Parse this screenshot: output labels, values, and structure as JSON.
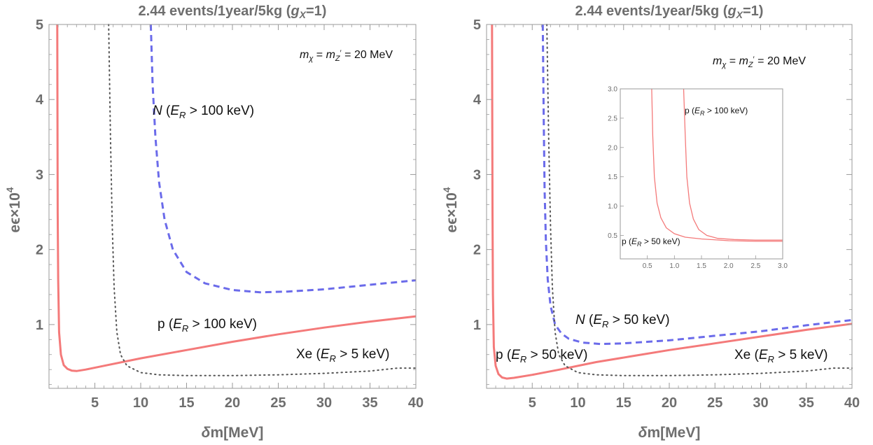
{
  "chart_data": [
    {
      "type": "line",
      "title_main": "2.44 events/1year/5kg (",
      "title_var": "g",
      "title_sub": "X",
      "title_end": "=1)",
      "xlabel_delta": "δ",
      "xlabel_rest": "m[MeV]",
      "ylabel_main": "eϵ×10",
      "ylabel_exp": "4",
      "xlim": [
        0,
        40
      ],
      "ylim": [
        0.15,
        5
      ],
      "xticks": [
        5,
        10,
        15,
        20,
        25,
        30,
        35,
        40
      ],
      "yticks": [
        1,
        2,
        3,
        4,
        5
      ],
      "mass_label": {
        "m": "m",
        "chi": "χ",
        "eq": " = ",
        "z": "Z",
        "prime": "′",
        "value": " = 20 MeV"
      },
      "series": [
        {
          "name": "p (E_R > 100 keV)",
          "style": "solid",
          "color": "#f47a7a",
          "x": [
            0.9,
            0.95,
            1.0,
            1.1,
            1.3,
            1.6,
            2.0,
            2.5,
            3.0,
            4,
            6,
            10,
            15,
            20,
            25,
            30,
            35,
            40
          ],
          "y": [
            5.0,
            2.5,
            1.6,
            0.9,
            0.6,
            0.46,
            0.41,
            0.385,
            0.38,
            0.4,
            0.45,
            0.55,
            0.66,
            0.77,
            0.87,
            0.96,
            1.04,
            1.11
          ]
        },
        {
          "name": "N (E_R > 100 keV)",
          "style": "dashed",
          "color": "#6b6bea",
          "x": [
            11.1,
            11.3,
            11.6,
            12.0,
            12.6,
            13.5,
            15,
            17,
            20,
            23,
            26,
            30,
            35,
            40
          ],
          "y": [
            5.0,
            4.2,
            3.5,
            2.9,
            2.4,
            2.0,
            1.7,
            1.55,
            1.46,
            1.43,
            1.44,
            1.47,
            1.53,
            1.59
          ]
        },
        {
          "name": "Xe (E_R > 5 keV)",
          "style": "dotted",
          "color": "#555555",
          "x": [
            6.5,
            6.7,
            6.9,
            7.1,
            7.4,
            7.8,
            8.5,
            10,
            12,
            15,
            20,
            25,
            30,
            35,
            38,
            40
          ],
          "y": [
            5.0,
            3.5,
            2.3,
            1.5,
            0.9,
            0.6,
            0.45,
            0.36,
            0.33,
            0.32,
            0.32,
            0.33,
            0.35,
            0.38,
            0.42,
            0.42
          ]
        }
      ],
      "labels": {
        "N": {
          "particle": "N",
          "open": " (",
          "E": "E",
          "R": "R",
          "cut": " > 100 keV)"
        },
        "p": {
          "particle": "p",
          "open": " (",
          "E": "E",
          "R": "R",
          "cut": " > 100 keV)"
        },
        "Xe": {
          "particle": "Xe",
          "open": " (",
          "E": "E",
          "R": "R",
          "cut": " > 5 keV)"
        }
      }
    },
    {
      "type": "line",
      "title_main": "2.44 events/1year/5kg (",
      "title_var": "g",
      "title_sub": "X",
      "title_end": "=1)",
      "xlabel_delta": "δ",
      "xlabel_rest": "m[MeV]",
      "ylabel_main": "eϵ×10",
      "ylabel_exp": "4",
      "xlim": [
        0,
        40
      ],
      "ylim": [
        0.15,
        5
      ],
      "xticks": [
        5,
        10,
        15,
        20,
        25,
        30,
        35,
        40
      ],
      "yticks": [
        1,
        2,
        3,
        4,
        5
      ],
      "mass_label": {
        "m": "m",
        "chi": "χ",
        "eq": " = ",
        "z": "Z",
        "prime": "′",
        "value": " = 20 MeV"
      },
      "series": [
        {
          "name": "p (E_R > 50 keV)",
          "style": "solid",
          "color": "#f47a7a",
          "x": [
            0.6,
            0.65,
            0.7,
            0.8,
            1.0,
            1.3,
            1.7,
            2.2,
            3,
            5,
            8,
            12,
            16,
            20,
            25,
            30,
            35,
            40
          ],
          "y": [
            5.0,
            2.5,
            1.4,
            0.7,
            0.45,
            0.34,
            0.295,
            0.28,
            0.29,
            0.33,
            0.4,
            0.5,
            0.58,
            0.66,
            0.75,
            0.84,
            0.93,
            1.01
          ]
        },
        {
          "name": "N (E_R > 50 keV)",
          "style": "dashed",
          "color": "#6b6bea",
          "x": [
            6.15,
            6.25,
            6.35,
            6.5,
            6.7,
            7.0,
            7.5,
            8.2,
            9,
            10.5,
            12.5,
            15,
            20,
            25,
            30,
            35,
            40
          ],
          "y": [
            5.0,
            3.8,
            2.8,
            2.1,
            1.6,
            1.25,
            1.0,
            0.88,
            0.81,
            0.76,
            0.74,
            0.75,
            0.79,
            0.85,
            0.91,
            0.99,
            1.06
          ]
        },
        {
          "name": "Xe (E_R > 5 keV)",
          "style": "dotted",
          "color": "#555555",
          "x": [
            6.6,
            6.8,
            7.0,
            7.2,
            7.5,
            7.9,
            8.6,
            10,
            12,
            15,
            20,
            25,
            30,
            35,
            38,
            40
          ],
          "y": [
            5.0,
            3.5,
            2.3,
            1.5,
            0.9,
            0.6,
            0.45,
            0.36,
            0.33,
            0.32,
            0.32,
            0.33,
            0.35,
            0.38,
            0.42,
            0.42
          ]
        }
      ],
      "labels": {
        "N": {
          "particle": "N",
          "open": " (",
          "E": "E",
          "R": "R",
          "cut": " > 50 keV)"
        },
        "p": {
          "particle": "p",
          "open": " (",
          "E": "E",
          "R": "R",
          "cut": " > 50 keV)"
        },
        "Xe": {
          "particle": "Xe",
          "open": " (",
          "E": "E",
          "R": "R",
          "cut": " > 5 keV)"
        }
      },
      "inset": {
        "type": "line",
        "xlim": [
          0,
          3
        ],
        "ylim": [
          0.1,
          3
        ],
        "xticks": [
          "0.5",
          "1.0",
          "1.5",
          "2.0",
          "2.5",
          "3.0"
        ],
        "yticks": [
          "0.5",
          "1.0",
          "1.5",
          "2.0",
          "2.5",
          "3.0"
        ],
        "series": [
          {
            "name": "p (E_R > 50 keV)",
            "color": "#f47a7a",
            "x": [
              0.58,
              0.6,
              0.63,
              0.68,
              0.75,
              0.85,
              1.0,
              1.2,
              1.5,
              2.0,
              2.5,
              3.0
            ],
            "y": [
              3.0,
              2.2,
              1.5,
              1.05,
              0.8,
              0.63,
              0.53,
              0.47,
              0.44,
              0.41,
              0.4,
              0.4
            ]
          },
          {
            "name": "p (E_R > 100 keV)",
            "color": "#f47a7a",
            "x": [
              1.17,
              1.2,
              1.23,
              1.28,
              1.35,
              1.45,
              1.6,
              1.8,
              2.1,
              2.5,
              3.0
            ],
            "y": [
              3.0,
              2.2,
              1.5,
              1.05,
              0.78,
              0.6,
              0.5,
              0.45,
              0.43,
              0.42,
              0.42
            ]
          }
        ],
        "labels": {
          "upper": {
            "particle": "p",
            "open": " (",
            "E": "E",
            "R": "R",
            "cut": " > 100 keV)"
          },
          "lower": {
            "particle": "p",
            "open": " (",
            "E": "E",
            "R": "R",
            "cut": " > 50 keV)"
          }
        }
      }
    }
  ]
}
